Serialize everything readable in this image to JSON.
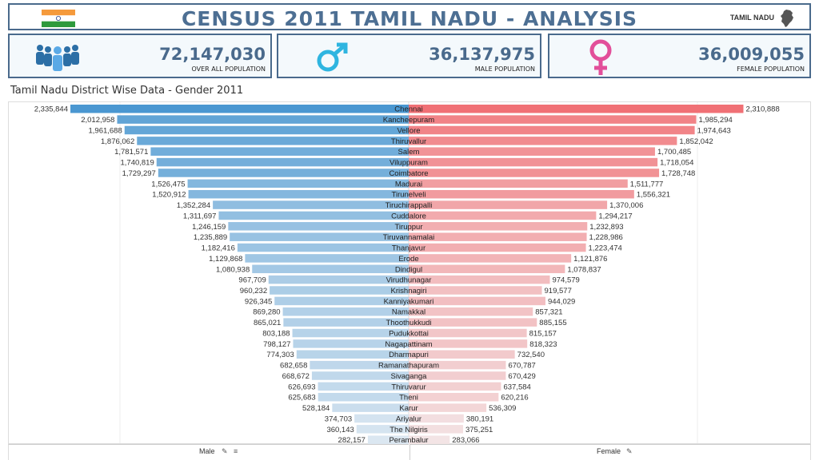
{
  "header": {
    "title": "CENSUS 2011 TAMIL NADU - ANALYSIS",
    "state_label": "TAMIL NADU",
    "flag_colors": [
      "#f59a3c",
      "#ffffff",
      "#2e9a3c"
    ]
  },
  "kpis": {
    "total": {
      "value": "72,147,030",
      "label": "OVER ALL POPULATION",
      "icon": "people-group-icon",
      "color": "#2c6fa6"
    },
    "male": {
      "value": "36,137,975",
      "label": "MALE POPULATION",
      "icon": "male-symbol-icon",
      "color": "#2fb5e0"
    },
    "female": {
      "value": "36,009,055",
      "label": "FEMALE POPULATION",
      "icon": "female-symbol-icon",
      "color": "#e24f9a"
    }
  },
  "footer": {
    "male_label": "Male",
    "female_label": "Female"
  },
  "chart_data": {
    "type": "bar",
    "title": "Tamil Nadu District Wise Data - Gender 2011",
    "orientation": "horizontal-butterfly",
    "categories": [
      "Chennai",
      "Kancheepuram",
      "Vellore",
      "Thiruvallur",
      "Salem",
      "Viluppuram",
      "Coimbatore",
      "Madurai",
      "Tirunelveli",
      "Tiruchirappalli",
      "Cuddalore",
      "Tiruppur",
      "Tiruvannamalai",
      "Thanjavur",
      "Erode",
      "Dindigul",
      "Virudhunagar",
      "Krishnagiri",
      "Kanniyakumari",
      "Namakkal",
      "Thoothukkudi",
      "Pudukkottai",
      "Nagapattinam",
      "Dharmapuri",
      "Ramanathapuram",
      "Sivaganga",
      "Thiruvarur",
      "Theni",
      "Karur",
      "Ariyalur",
      "The Nilgiris",
      "Perambalur"
    ],
    "series": [
      {
        "name": "Male",
        "values": [
          2335844,
          2012958,
          1961688,
          1876062,
          1781571,
          1740819,
          1729297,
          1526475,
          1520912,
          1352284,
          1311697,
          1246159,
          1235889,
          1182416,
          1129868,
          1080938,
          967709,
          960232,
          926345,
          869280,
          865021,
          803188,
          798127,
          774303,
          682658,
          668672,
          626693,
          625683,
          528184,
          374703,
          360143,
          282157
        ],
        "labels": [
          "2,335,844",
          "2,012,958",
          "1,961,688",
          "1,876,062",
          "1,781,571",
          "1,740,819",
          "1,729,297",
          "1,526,475",
          "1,520,912",
          "1,352,284",
          "1,311,697",
          "1,246,159",
          "1,235,889",
          "1,182,416",
          "1,129,868",
          "1,080,938",
          "967,709",
          "960,232",
          "926,345",
          "869,280",
          "865,021",
          "803,188",
          "798,127",
          "774,303",
          "682,658",
          "668,672",
          "626,693",
          "625,683",
          "528,184",
          "374,703",
          "360,143",
          "282,157"
        ],
        "color_strong": "#4a97d1",
        "color_light": "#dbe7f1"
      },
      {
        "name": "Female",
        "values": [
          2310888,
          1985294,
          1974643,
          1852042,
          1700485,
          1718054,
          1728748,
          1511777,
          1556321,
          1370006,
          1294217,
          1232893,
          1228986,
          1223474,
          1121876,
          1078837,
          974579,
          919577,
          944029,
          857321,
          885155,
          815157,
          818323,
          732540,
          670787,
          670429,
          637584,
          620216,
          536309,
          380191,
          375251,
          283066
        ],
        "labels": [
          "2,310,888",
          "1,985,294",
          "1,974,643",
          "1,852,042",
          "1,700,485",
          "1,718,054",
          "1,728,748",
          "1,511,777",
          "1,556,321",
          "1,370,006",
          "1,294,217",
          "1,232,893",
          "1,228,986",
          "1,223,474",
          "1,121,876",
          "1,078,837",
          "974,579",
          "919,577",
          "944,029",
          "857,321",
          "885,155",
          "815,157",
          "818,323",
          "732,540",
          "670,787",
          "670,429",
          "637,584",
          "620,216",
          "536,309",
          "380,191",
          "375,251",
          "283,066"
        ],
        "color_strong": "#f06f74",
        "color_light": "#f3e4e5"
      }
    ]
  }
}
